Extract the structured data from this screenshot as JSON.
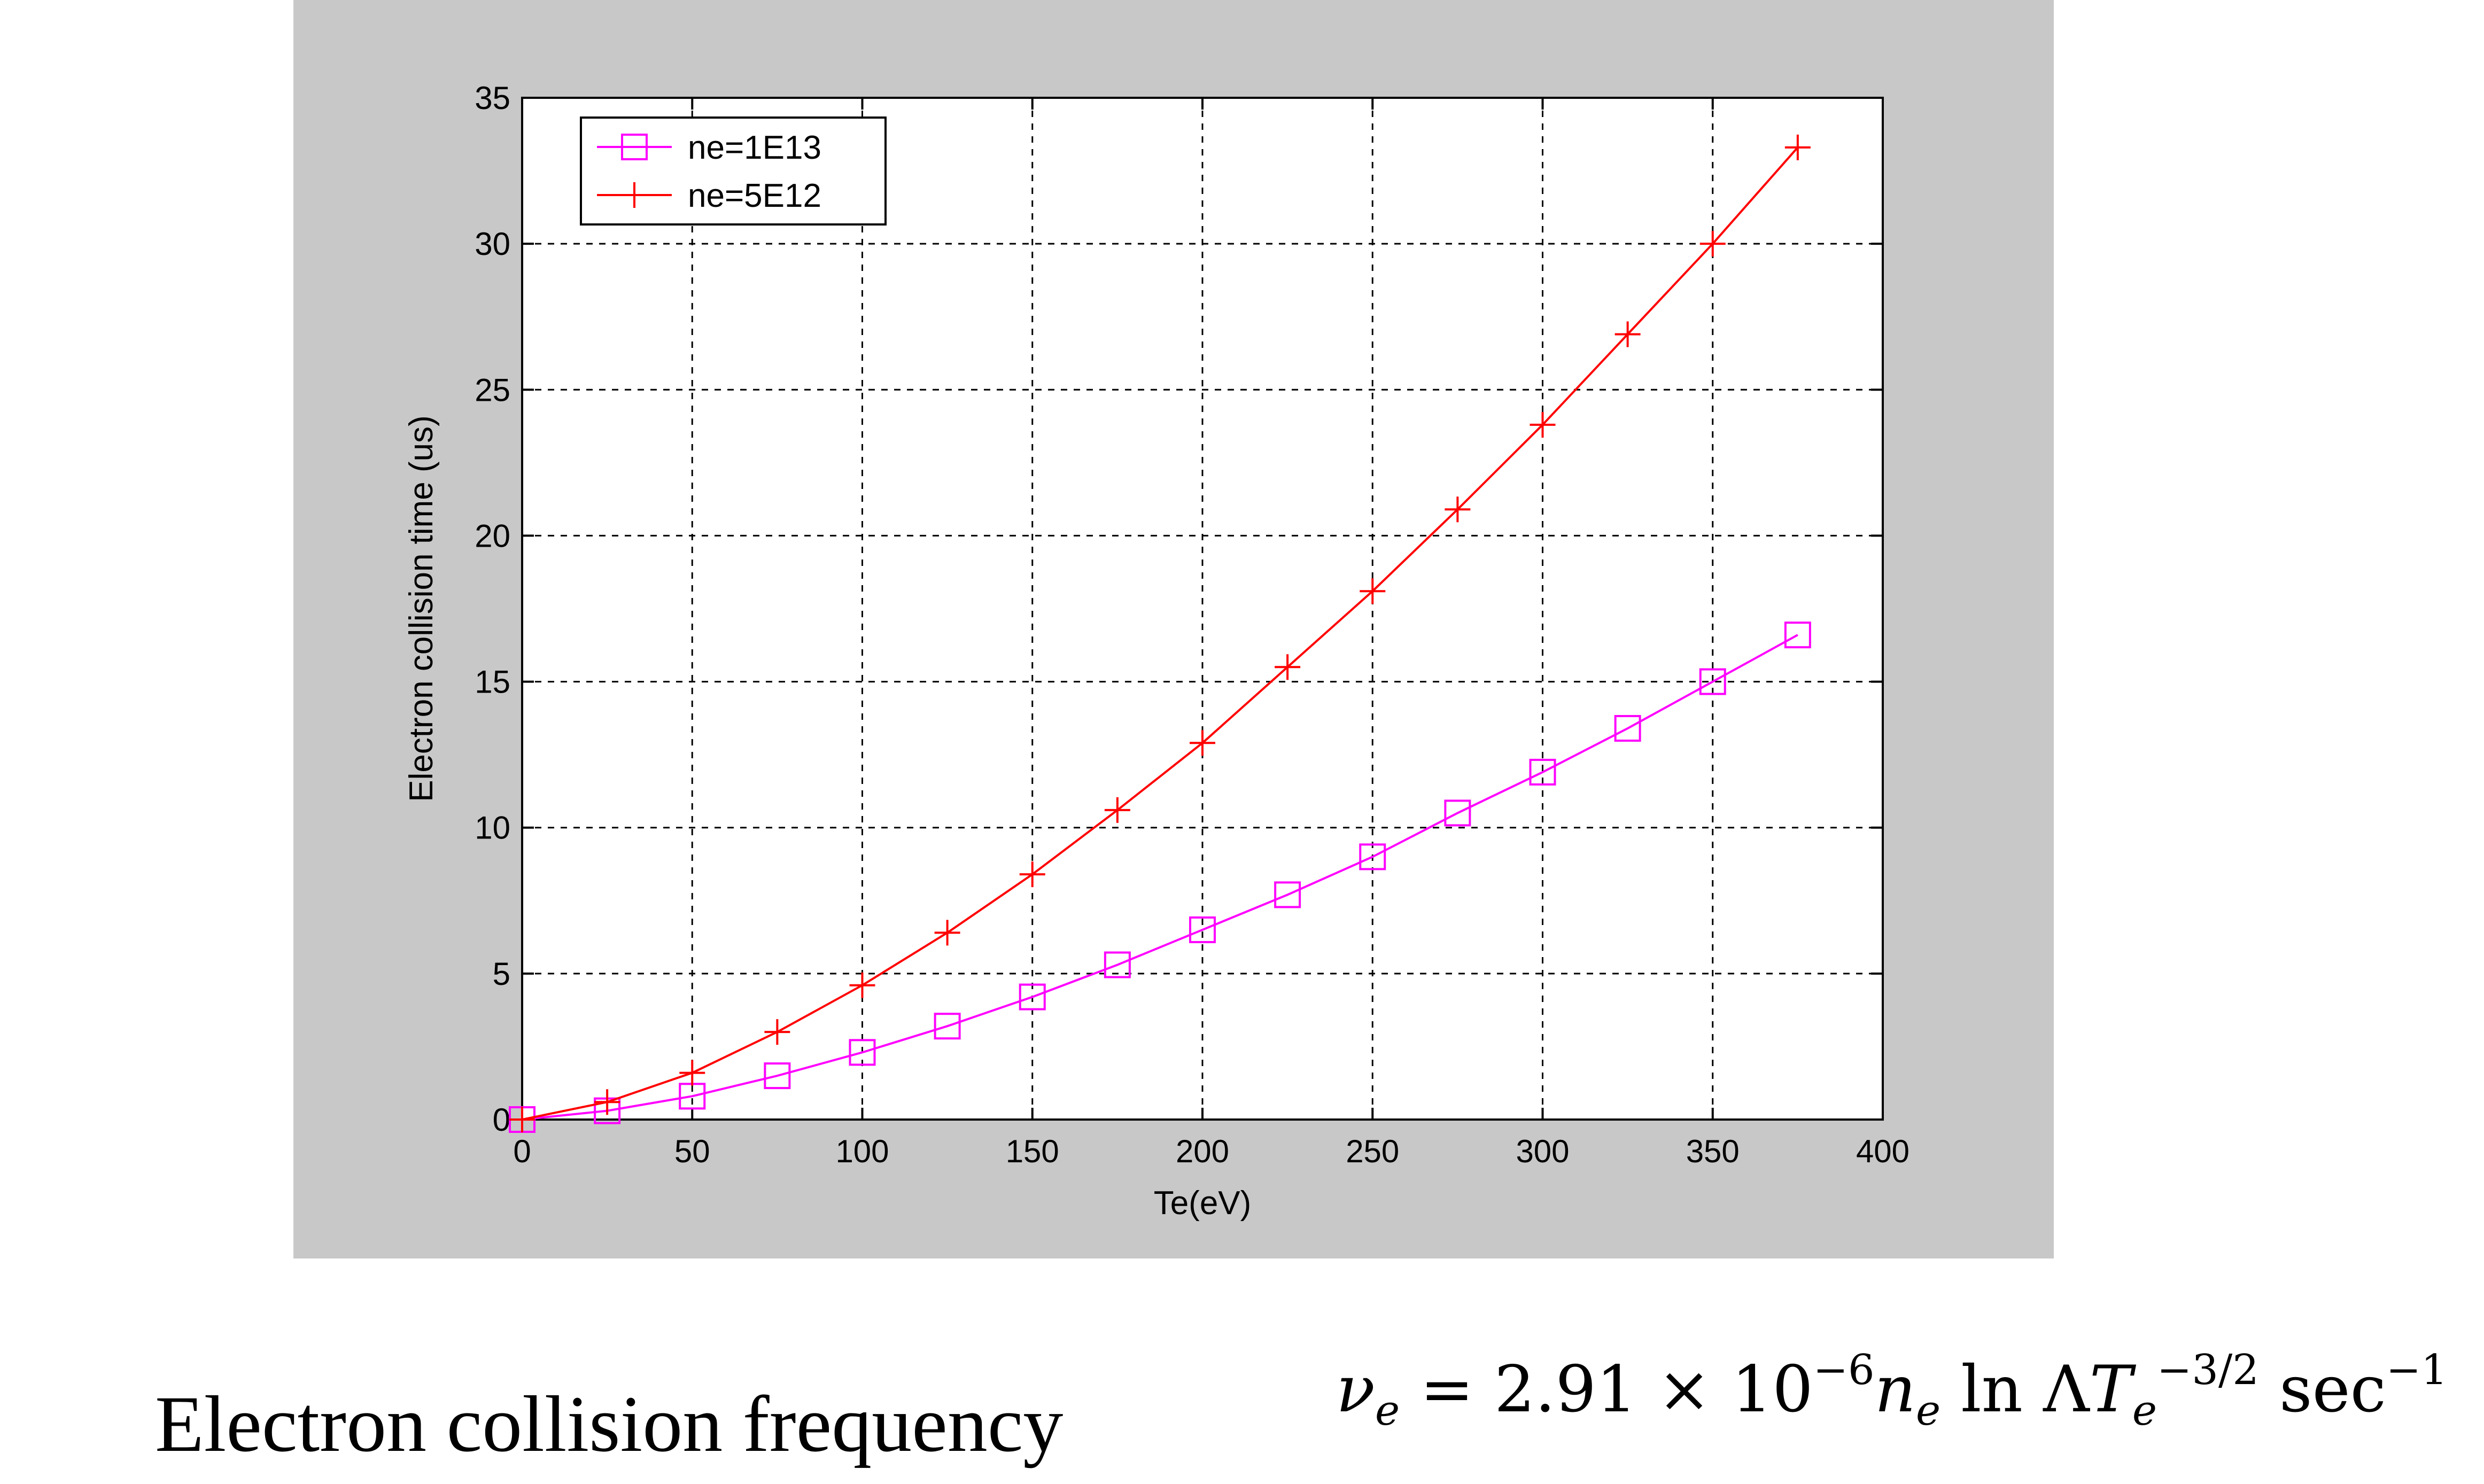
{
  "chart_data": {
    "type": "line",
    "title": "",
    "xlabel": "Te(eV)",
    "ylabel": "Electron collision time (us)",
    "xlim": [
      0,
      400
    ],
    "ylim": [
      0,
      35
    ],
    "xticks": [
      0,
      50,
      100,
      150,
      200,
      250,
      300,
      350,
      400
    ],
    "yticks": [
      0,
      5,
      10,
      15,
      20,
      25,
      30,
      35
    ],
    "grid": true,
    "legend_position": "top-left",
    "series": [
      {
        "name": "ne=1E13",
        "color": "#ff00ff",
        "marker": "square",
        "x": [
          0,
          25,
          50,
          75,
          100,
          125,
          150,
          175,
          200,
          225,
          250,
          275,
          300,
          325,
          350,
          375
        ],
        "y": [
          0.0,
          0.3,
          0.8,
          1.5,
          2.3,
          3.2,
          4.2,
          5.3,
          6.5,
          7.7,
          9.0,
          10.5,
          11.9,
          13.4,
          15.0,
          16.6
        ]
      },
      {
        "name": "ne=5E12",
        "color": "#ff0000",
        "marker": "plus",
        "x": [
          0,
          25,
          50,
          75,
          100,
          125,
          150,
          175,
          200,
          225,
          250,
          275,
          300,
          325,
          350,
          375
        ],
        "y": [
          0.0,
          0.6,
          1.6,
          3.0,
          4.6,
          6.4,
          8.4,
          10.6,
          12.9,
          15.5,
          18.1,
          20.9,
          23.8,
          26.9,
          30.0,
          33.3
        ]
      }
    ]
  },
  "caption": "Electron collision frequency",
  "formula": {
    "lhs": "ν",
    "lhs_sub": "e",
    "equals": " = 2.91 × 10",
    "exp1": "−6",
    "n": "n",
    "n_sub": "e",
    "ln": " ln Λ",
    "T": "T",
    "T_sub": "e",
    "exp2": "−3/2",
    "sec": " sec",
    "exp3": "−1"
  }
}
